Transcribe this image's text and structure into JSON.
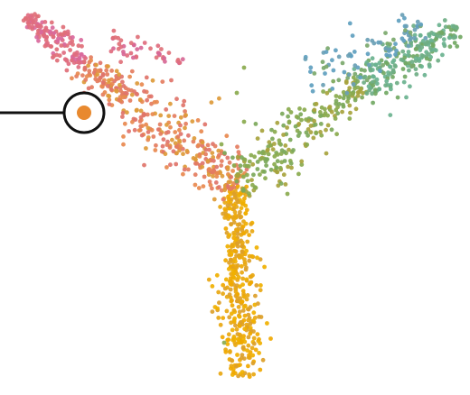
{
  "chart_data": {
    "type": "scatter",
    "title": "",
    "xlabel": "",
    "ylabel": "",
    "axes_visible": false,
    "grid": false,
    "legend": "none",
    "colors": {
      "root": "#f2a900",
      "mid_stem": "#e58a4a",
      "left_branch": "#e4756f",
      "left_tip": "#d9699c",
      "right_mid": "#8aaa4e",
      "right_branch": "#6fa36b",
      "right_tip": "#6fb08f",
      "blue_cells": "#5f9fbf",
      "highlight_fill": "#e8892f",
      "highlight_ring": "#111111",
      "callout_line": "#111111"
    },
    "branches": [
      {
        "name": "",
        "from": [
          268,
          418
        ],
        "to": [
          262,
          205
        ],
        "count": 390,
        "spread": 12,
        "colors": [
          "#f0a800",
          "#f0b000",
          "#e8a712",
          "#dca02a"
        ]
      },
      {
        "name": "",
        "from": [
          262,
          205
        ],
        "to": [
          92,
          70
        ],
        "count": 360,
        "spread": 18,
        "colors": [
          "#dd9a3a",
          "#e8894f",
          "#e47d5f",
          "#e0746a"
        ]
      },
      {
        "name": "",
        "from": [
          92,
          70
        ],
        "to": [
          30,
          18
        ],
        "count": 140,
        "spread": 9,
        "colors": [
          "#df6f78",
          "#d9699c",
          "#e06d80"
        ]
      },
      {
        "name": "",
        "from": [
          120,
          45
        ],
        "to": [
          205,
          70
        ],
        "count": 45,
        "spread": 8,
        "colors": [
          "#df6d7e",
          "#d76896",
          "#e0717a"
        ]
      },
      {
        "name": "",
        "from": [
          262,
          205
        ],
        "to": [
          400,
          95
        ],
        "count": 230,
        "spread": 18,
        "colors": [
          "#a7a33d",
          "#8aaa4e",
          "#7ca85a"
        ]
      },
      {
        "name": "",
        "from": [
          400,
          95
        ],
        "to": [
          505,
          30
        ],
        "count": 210,
        "spread": 14,
        "colors": [
          "#72a864",
          "#6fae86",
          "#6ab28f"
        ]
      },
      {
        "name": "",
        "from": [
          340,
          90
        ],
        "to": [
          470,
          30
        ],
        "count": 90,
        "spread": 16,
        "colors": [
          "#5f9fbf",
          "#6a9fb5",
          "#7ba86c"
        ]
      }
    ],
    "stray_points": [
      [
        270,
        75
      ],
      [
        262,
        103
      ],
      [
        270,
        135
      ],
      [
        245,
        160
      ],
      [
        318,
        215
      ],
      [
        248,
        380
      ]
    ],
    "highlight_point": {
      "label": ""
    }
  }
}
